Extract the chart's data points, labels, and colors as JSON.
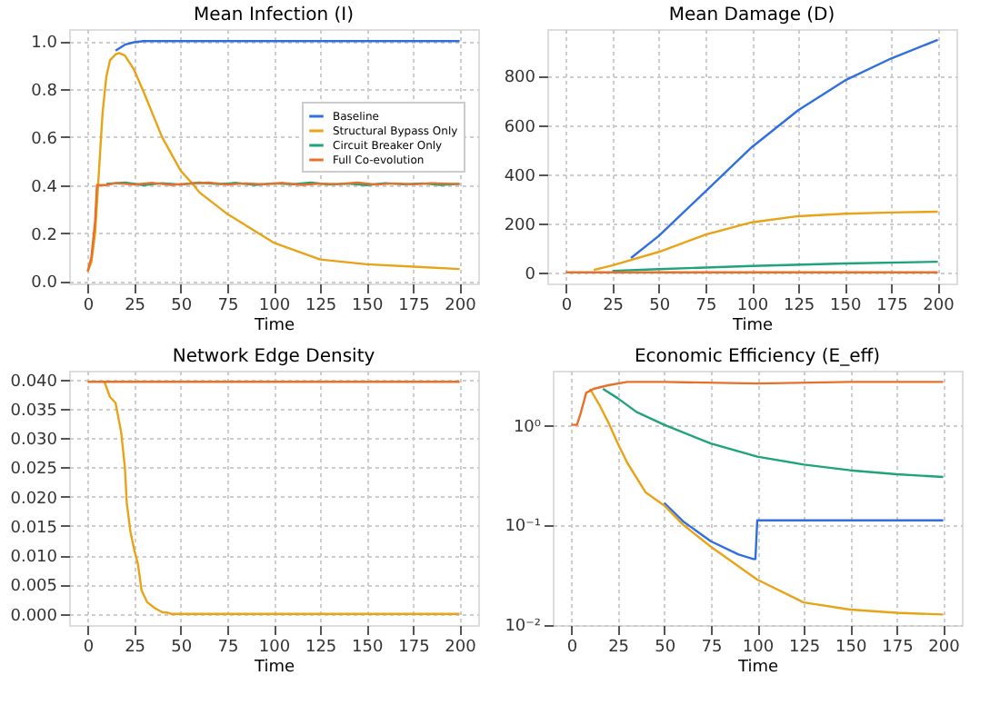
{
  "chart_data": [
    {
      "type": "line",
      "title": "Mean Infection (I)",
      "xlabel": "Time",
      "xlim": [
        -10,
        210
      ],
      "xticks": [
        0,
        25,
        50,
        75,
        100,
        125,
        150,
        175,
        200
      ],
      "ylim": [
        -0.01,
        1.05
      ],
      "yticks": [
        {
          "value": 0,
          "label": "0.0"
        },
        0.2,
        0.4,
        0.6,
        0.8,
        {
          "value": 1,
          "label": "1.0"
        }
      ],
      "grid": true,
      "legend": "right",
      "line_style": "solid",
      "series": [
        {
          "name": "Baseline",
          "color": "#2f6fdf",
          "x": [
            15,
            20,
            25,
            30,
            200
          ],
          "values": [
            0.96,
            0.985,
            0.995,
            1.0,
            1.0
          ]
        },
        {
          "name": "Structural Bypass Only",
          "color": "#e8a317",
          "x": [
            0,
            2,
            4,
            6,
            8,
            10,
            12,
            15,
            17,
            20,
            25,
            30,
            40,
            50,
            57,
            60,
            75,
            100,
            125,
            150,
            175,
            200
          ],
          "values": [
            0.04,
            0.08,
            0.2,
            0.45,
            0.7,
            0.85,
            0.92,
            0.945,
            0.95,
            0.94,
            0.88,
            0.79,
            0.6,
            0.46,
            0.4,
            0.37,
            0.28,
            0.16,
            0.09,
            0.07,
            0.06,
            0.05
          ]
        },
        {
          "name": "Circuit Breaker Only",
          "color": "#1fa37a",
          "x": [
            10,
            20,
            30,
            40,
            50,
            60,
            70,
            80,
            90,
            100,
            110,
            120,
            130,
            140,
            150,
            160,
            170,
            180,
            190,
            200
          ],
          "values": [
            0.405,
            0.41,
            0.4,
            0.408,
            0.402,
            0.41,
            0.404,
            0.409,
            0.401,
            0.407,
            0.403,
            0.41,
            0.402,
            0.406,
            0.4,
            0.408,
            0.403,
            0.407,
            0.401,
            0.405
          ]
        },
        {
          "name": "Full Co-evolution",
          "color": "#e8702a",
          "x": [
            0,
            2,
            4,
            5,
            10,
            15,
            25,
            35,
            45,
            55,
            65,
            75,
            85,
            95,
            105,
            115,
            125,
            135,
            145,
            155,
            165,
            175,
            185,
            200
          ],
          "values": [
            0.04,
            0.1,
            0.25,
            0.4,
            0.4,
            0.408,
            0.402,
            0.409,
            0.401,
            0.406,
            0.41,
            0.402,
            0.407,
            0.403,
            0.409,
            0.401,
            0.406,
            0.404,
            0.41,
            0.402,
            0.407,
            0.403,
            0.408,
            0.404
          ]
        }
      ]
    },
    {
      "type": "line",
      "title": "Mean Damage (D)",
      "xlabel": "Time",
      "xlim": [
        -10,
        210
      ],
      "xticks": [
        0,
        25,
        50,
        75,
        100,
        125,
        150,
        175,
        200
      ],
      "ylim": [
        -43,
        989
      ],
      "yticks": [
        0,
        200,
        400,
        600,
        800
      ],
      "grid": true,
      "line_style": "solid",
      "series": [
        {
          "name": "Baseline",
          "color": "#2f6fdf",
          "x": [
            35,
            50,
            75,
            100,
            125,
            150,
            175,
            200
          ],
          "values": [
            60,
            150,
            330,
            510,
            660,
            780,
            870,
            945
          ]
        },
        {
          "name": "Structural Bypass Only",
          "color": "#e8a317",
          "x": [
            15,
            25,
            50,
            75,
            100,
            125,
            150,
            175,
            200
          ],
          "values": [
            12,
            30,
            85,
            155,
            205,
            230,
            240,
            245,
            248
          ]
        },
        {
          "name": "Circuit Breaker Only",
          "color": "#1fa37a",
          "x": [
            25,
            50,
            100,
            150,
            200
          ],
          "values": [
            8,
            15,
            28,
            38,
            45
          ]
        },
        {
          "name": "Full Co-evolution",
          "color": "#e8702a",
          "x": [
            0,
            200
          ],
          "values": [
            2,
            2
          ]
        }
      ]
    },
    {
      "type": "line",
      "title": "Network Edge Density",
      "xlabel": "Time",
      "xlim": [
        -10,
        210
      ],
      "xticks": [
        0,
        25,
        50,
        75,
        100,
        125,
        150,
        175,
        200
      ],
      "ylim": [
        -0.0019,
        0.0415
      ],
      "yticks": [
        {
          "value": 0,
          "label": "0.000"
        },
        {
          "value": 0.005,
          "label": "0.005"
        },
        {
          "value": 0.01,
          "label": "0.010"
        },
        {
          "value": 0.015,
          "label": "0.015"
        },
        {
          "value": 0.02,
          "label": "0.020"
        },
        {
          "value": 0.025,
          "label": "0.025"
        },
        {
          "value": 0.03,
          "label": "0.030"
        },
        {
          "value": 0.035,
          "label": "0.035"
        },
        {
          "value": 0.04,
          "label": "0.040"
        }
      ],
      "grid": true,
      "line_style": "solid",
      "series": [
        {
          "name": "Structural Bypass Only",
          "color": "#e8a317",
          "x": [
            9,
            12,
            15,
            18,
            20,
            21,
            23,
            25,
            27,
            29,
            32,
            36,
            40,
            43,
            45,
            200
          ],
          "values": [
            0.0396,
            0.037,
            0.036,
            0.031,
            0.025,
            0.019,
            0.014,
            0.011,
            0.0085,
            0.004,
            0.002,
            0.001,
            0.0003,
            0.0002,
            0.0,
            0.0
          ]
        },
        {
          "name": "Full Co-evolution",
          "color": "#e8702a",
          "x": [
            0,
            200
          ],
          "values": [
            0.0396,
            0.0396
          ]
        }
      ]
    },
    {
      "type": "line",
      "title": "Economic Efficiency (E_eff)",
      "xlabel": "Time",
      "xlim": [
        -10,
        210
      ],
      "xticks": [
        0,
        25,
        50,
        75,
        100,
        125,
        150,
        175,
        200
      ],
      "log": "y",
      "ylim": [
        0.0098,
        3.5
      ],
      "yticks": [
        {
          "value": 0.01,
          "label": "10⁻²"
        },
        {
          "value": 0.1,
          "label": "10⁻¹"
        },
        {
          "value": 1,
          "label": "10⁰"
        }
      ],
      "grid": true,
      "line_style": "solid",
      "series": [
        {
          "name": "Baseline",
          "color": "#2f6fdf",
          "x": [
            50,
            60,
            75,
            90,
            98,
            99,
            100,
            200
          ],
          "values": [
            0.165,
            0.108,
            0.068,
            0.05,
            0.045,
            0.045,
            0.11,
            0.11
          ]
        },
        {
          "name": "Structural Bypass Only",
          "color": "#e8a317",
          "x": [
            10,
            15,
            20,
            25,
            30,
            40,
            50,
            60,
            75,
            100,
            125,
            150,
            175,
            200
          ],
          "values": [
            2.3,
            1.6,
            1.05,
            0.65,
            0.42,
            0.21,
            0.155,
            0.1,
            0.06,
            0.028,
            0.0165,
            0.014,
            0.013,
            0.0125
          ]
        },
        {
          "name": "Circuit Breaker Only",
          "color": "#1fa37a",
          "x": [
            17,
            25,
            35,
            50,
            75,
            100,
            125,
            150,
            175,
            200
          ],
          "values": [
            2.3,
            1.85,
            1.35,
            1.0,
            0.65,
            0.48,
            0.4,
            0.35,
            0.32,
            0.3
          ]
        },
        {
          "name": "Full Co-evolution",
          "color": "#e8702a",
          "x": [
            0,
            3,
            5,
            8,
            12,
            20,
            30,
            50,
            100,
            150,
            200
          ],
          "values": [
            1,
            1,
            1.3,
            2.1,
            2.3,
            2.5,
            2.7,
            2.7,
            2.6,
            2.7,
            2.7
          ]
        }
      ]
    }
  ]
}
